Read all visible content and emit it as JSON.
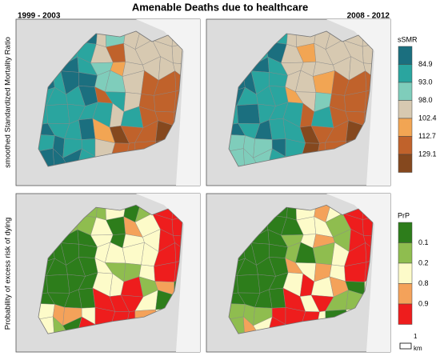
{
  "title": "Amenable Deaths due to healthcare",
  "periods": [
    "1999 - 2003",
    "2008 - 2012"
  ],
  "rows": [
    {
      "label": "smoothed Standardized Mortality Ratio",
      "legend": {
        "title": "sSMR",
        "labels": [
          "84.9",
          "93.0",
          "98.0",
          "102.4",
          "112.7",
          "129.1"
        ],
        "colors": [
          "#1b6f7f",
          "#2aa59f",
          "#7fcdbb",
          "#d7c9b1",
          "#f2a553",
          "#c0622b",
          "#85481e"
        ]
      }
    },
    {
      "label": "Probability of excess risk of dying",
      "legend": {
        "title": "PrP",
        "labels": [
          "0.1",
          "0.2",
          "0.8",
          "0.9"
        ],
        "colors": [
          "#2d7d1b",
          "#8fbd4f",
          "#fdfbc9",
          "#f4a25a",
          "#ee1d1d"
        ]
      }
    }
  ],
  "scale": {
    "value": "1",
    "unit": "km"
  }
}
